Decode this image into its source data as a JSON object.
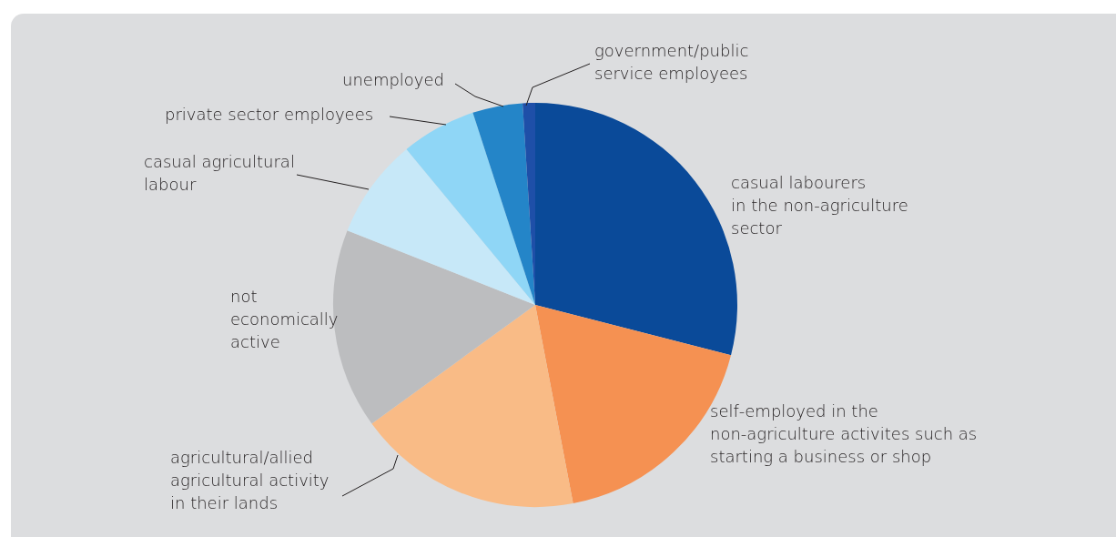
{
  "chart_data": {
    "type": "pie",
    "categories": [
      "casual labourers in the non-agriculture sector",
      "self-employed in the non-agriculture activites such as starting a business or shop",
      "agricultural/allied agricultural activity in their lands",
      "not economically active",
      "casual agricultural labour",
      "private sector employees",
      "unemployed",
      "government/public service employees"
    ],
    "values": [
      29,
      18,
      18,
      16,
      8,
      6,
      4,
      1
    ],
    "colors": [
      "#0a4a99",
      "#f59152",
      "#f9bb86",
      "#bcbdbf",
      "#c7e8f8",
      "#8fd6f6",
      "#2485c8",
      "#1e4fa8"
    ],
    "legend": false
  }
}
